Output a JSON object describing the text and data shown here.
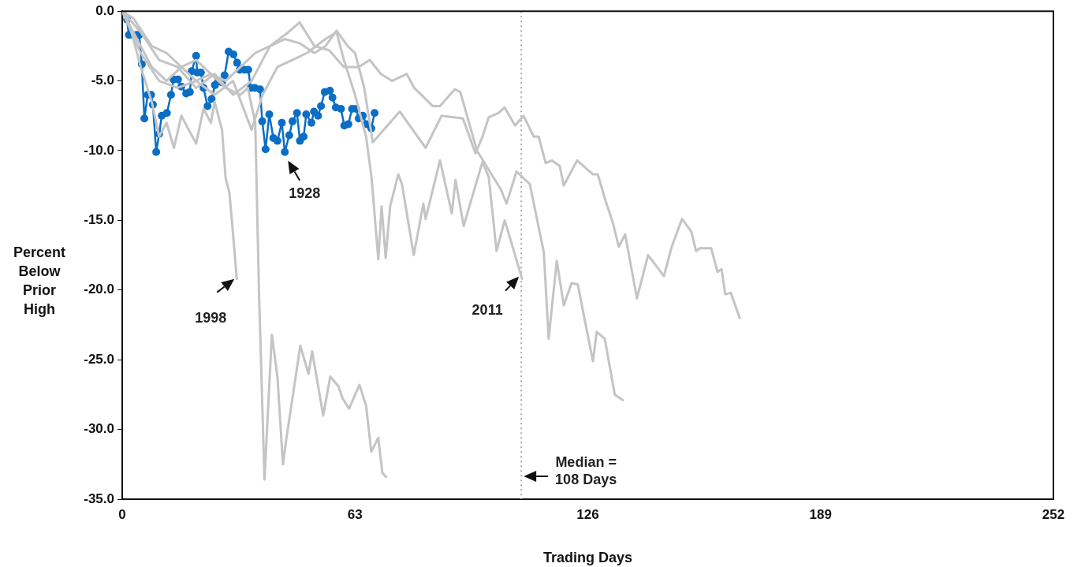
{
  "chart_data": {
    "type": "line",
    "xlabel": "Trading Days",
    "ylabel": "Percent Below Prior High",
    "xlim": [
      0,
      252
    ],
    "xticks": [
      0,
      63,
      126,
      189,
      252
    ],
    "ylim": [
      -35,
      0
    ],
    "yticks": [
      {
        "value": 0,
        "label": "0.0"
      },
      {
        "value": -5,
        "label": "-5.0"
      },
      {
        "value": -10,
        "label": "-10.0"
      },
      {
        "value": -15,
        "label": "-15.0"
      },
      {
        "value": -20,
        "label": "-20.0"
      },
      {
        "value": -25,
        "label": "-25.0"
      },
      {
        "value": -30,
        "label": "-30.0"
      },
      {
        "value": -35,
        "label": "-35.0"
      }
    ],
    "grid": false,
    "legend": false,
    "marker": "none",
    "line_style": "solid",
    "series": [
      {
        "color": "#c4c4c4",
        "x": [
          0,
          2,
          5,
          8,
          10,
          12,
          14,
          16,
          18,
          20,
          22,
          24,
          25,
          27,
          28,
          29,
          30,
          31
        ],
        "values": [
          0,
          -1,
          -4,
          -6.5,
          -9,
          -8,
          -9.8,
          -7.5,
          -8.5,
          -9.5,
          -7,
          -8,
          -6.5,
          -8.5,
          -12,
          -13,
          -16,
          -19.2
        ]
      },
      {
        "color": "#c4c4c4",
        "x": [
          0,
          4,
          8,
          12,
          16,
          20,
          24,
          28,
          32,
          34,
          36,
          37,
          38.5,
          40.5,
          42,
          43.5,
          44.4,
          48.2,
          50.4,
          51.4,
          54.4,
          56.3,
          58.5,
          59.7,
          61.4,
          64.2,
          66,
          67.4,
          69.3,
          70.4,
          71.4
        ],
        "values": [
          0,
          -2,
          -4,
          -5,
          -4,
          -5,
          -4.5,
          -5.5,
          -6,
          -5.5,
          -8,
          -20,
          -33.6,
          -23.2,
          -26.2,
          -32.5,
          -30.7,
          -24,
          -26,
          -24.4,
          -29,
          -26.2,
          -26.9,
          -27.8,
          -28.5,
          -26.8,
          -28.3,
          -31.6,
          -30.6,
          -33.1,
          -33.4
        ]
      },
      {
        "color": "#c4c4c4",
        "x": [
          0,
          5,
          10,
          15,
          20,
          25,
          30,
          35,
          38,
          42,
          46,
          50,
          55,
          58,
          60,
          63,
          66,
          67.5,
          69.3,
          70.2,
          71.3,
          72.5,
          74.7,
          75.7,
          78.9,
          81.5,
          82.1,
          86,
          89.2,
          90.2,
          92.4,
          97.5,
          99.2,
          101.3,
          103.5,
          105.2,
          108.2
        ],
        "values": [
          0,
          -3,
          -5,
          -5.5,
          -5,
          -6,
          -5,
          -8.5,
          -6,
          -4,
          -3.5,
          -3,
          -2,
          -1.5,
          -3.5,
          -6,
          -9,
          -12,
          -17.8,
          -14,
          -17.7,
          -14,
          -11.7,
          -12.4,
          -17.5,
          -13.8,
          -14.9,
          -10.7,
          -14.5,
          -12.1,
          -15.4,
          -10.8,
          -11.9,
          -17.2,
          -15,
          -16.5,
          -19.2
        ]
      },
      {
        "color": "#c4c4c4",
        "x": [
          0,
          5,
          10,
          15,
          20,
          25,
          30,
          35,
          40,
          45,
          48,
          52,
          56,
          60,
          64,
          67,
          70,
          73,
          77,
          79,
          84,
          86,
          90,
          91.5,
          96,
          102.5,
          104,
          106.7,
          110.3,
          114.1,
          115.4,
          117.6,
          119.5,
          121.6,
          123.3,
          125.5,
          127.4,
          128.4,
          130.6,
          133.3,
          135.5
        ],
        "values": [
          0,
          -1.5,
          -3.5,
          -4,
          -5.5,
          -4.5,
          -6,
          -5,
          -2.5,
          -1.5,
          -0.8,
          -2.5,
          -2.8,
          -4,
          -4,
          -3.5,
          -4.5,
          -5,
          -4.5,
          -5.5,
          -6.8,
          -6.8,
          -5.6,
          -5.8,
          -10,
          -12.8,
          -13.8,
          -11.5,
          -12.4,
          -17.3,
          -23.5,
          -17.9,
          -21.1,
          -19.5,
          -19.6,
          -22.6,
          -25.1,
          -23,
          -23.5,
          -27.5,
          -27.9
        ]
      },
      {
        "color": "#c4c4c4",
        "x": [
          0,
          3,
          8,
          12,
          16,
          20,
          24,
          28,
          32,
          36,
          40,
          44,
          48,
          52,
          55,
          58,
          61,
          63,
          65.5,
          67.8,
          75.1,
          82.1,
          86.4,
          92.2,
          95.6,
          97.5,
          99.2,
          101.8,
          103.5,
          106.3,
          108.6,
          111.4,
          112.7,
          114.6,
          116.3,
          118.4,
          119.5,
          123.1,
          127.4,
          128.7,
          130.8,
          132.7,
          134.4,
          136.1,
          139.3,
          142.3,
          146.6,
          148.7,
          151.5,
          154,
          155.3,
          156.4,
          159.4,
          161.1,
          162.2,
          163.2,
          164.7,
          167.1
        ],
        "values": [
          0,
          -0.5,
          -2.5,
          -3,
          -4,
          -3.5,
          -4.5,
          -5,
          -4,
          -3,
          -2.5,
          -2,
          -2.3,
          -3,
          -2.5,
          -1.4,
          -2.5,
          -3,
          -5.5,
          -9.4,
          -7.2,
          -9.8,
          -7.5,
          -7.7,
          -10.2,
          -9,
          -7.6,
          -7.3,
          -6.9,
          -8.2,
          -7.5,
          -9,
          -9,
          -10.9,
          -10.7,
          -11.1,
          -12.5,
          -10.7,
          -11.7,
          -11.7,
          -13.6,
          -15.1,
          -16.9,
          -16,
          -20.6,
          -17.5,
          -19,
          -16.9,
          -14.9,
          -15.8,
          -17.2,
          -17,
          -17,
          -18.7,
          -18.5,
          -20.3,
          -20.2,
          -22
        ]
      },
      {
        "color": "#0a6ec4",
        "marker": "circle",
        "x": [
          0,
          1.3,
          1.8,
          2.8,
          3.9,
          4.6,
          5.3,
          6,
          6.9,
          7.8,
          8.3,
          9.2,
          10,
          10.7,
          12.1,
          13.2,
          13.9,
          15.1,
          16,
          17.3,
          18.3,
          18.8,
          20,
          20.3,
          21.3,
          22,
          23.1,
          24.2,
          25.1,
          26,
          27,
          27.7,
          28.8,
          30.1,
          31.1,
          31.8,
          33.1,
          34.1,
          34.8,
          35.9,
          37.3,
          37.9,
          38.8,
          39.8,
          40.9,
          42,
          43.2,
          44,
          45.2,
          46.1,
          47.3,
          48.1,
          49.1,
          49.8,
          51.2,
          51.9,
          53,
          53.8,
          54.8,
          56.2,
          56.9,
          57.8,
          59.2,
          60.1,
          61.2,
          62.2,
          63.3,
          64,
          65.1,
          66.1,
          67.4,
          68.3
        ],
        "values": [
          0,
          -0.6,
          -1.7,
          -1.7,
          -1.7,
          -1.7,
          -3.8,
          -7.7,
          -6,
          -6,
          -6.7,
          -10.1,
          -8.8,
          -7.5,
          -7.3,
          -6,
          -4.9,
          -4.9,
          -5.4,
          -5.9,
          -5.8,
          -4.3,
          -3.2,
          -4.4,
          -4.4,
          -5.5,
          -6.8,
          -6.3,
          -5.3,
          -5,
          -5.1,
          -4.6,
          -2.9,
          -3.1,
          -3.7,
          -4.2,
          -4.2,
          -4.2,
          -5.5,
          -5.5,
          -5.6,
          -7.9,
          -9.9,
          -7.4,
          -9.1,
          -9.3,
          -8,
          -10.1,
          -8.9,
          -7.9,
          -7.3,
          -9.3,
          -9,
          -7.4,
          -8,
          -7.2,
          -7.5,
          -6.8,
          -5.8,
          -5.7,
          -6.2,
          -6.9,
          -7,
          -8.2,
          -8.1,
          -7,
          -7,
          -7.7,
          -7.5,
          -8.1,
          -8.4,
          -7.3
        ]
      }
    ],
    "ref_lines": [
      {
        "axis": "x",
        "value": 108,
        "label": "Median = 108 Days",
        "color": "#aaaaaa",
        "line_style": "dotted"
      }
    ],
    "annotations": [
      {
        "text": "1928",
        "x": 44,
        "y": -10.1
      },
      {
        "text": "1998",
        "x": 31,
        "y": -19.2
      },
      {
        "text": "2011",
        "x": 108,
        "y": -19.2
      }
    ]
  }
}
